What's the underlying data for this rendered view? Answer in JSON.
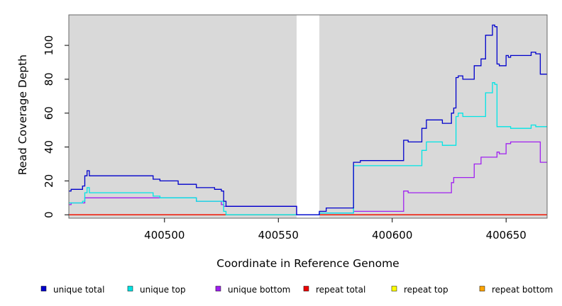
{
  "chart_data": {
    "type": "line",
    "xlabel": "Coordinate in Reference Genome",
    "ylabel": "Read Coverage Depth",
    "xlim": [
      400458,
      400668
    ],
    "ylim": [
      -2,
      118
    ],
    "xticks": [
      400500,
      400550,
      400600,
      400650
    ],
    "yticks": [
      0,
      20,
      40,
      60,
      80,
      100
    ],
    "gap": [
      400558,
      400568
    ],
    "colors": {
      "panel": "#d9d9d9",
      "gap": "#ffffff"
    },
    "legend_position": "bottom",
    "series": [
      {
        "name": "unique total",
        "color": "#0000cc",
        "points": [
          [
            400458,
            14
          ],
          [
            400459,
            15
          ],
          [
            400464,
            17
          ],
          [
            400465,
            23
          ],
          [
            400466,
            26
          ],
          [
            400467,
            23
          ],
          [
            400495,
            21
          ],
          [
            400498,
            20
          ],
          [
            400506,
            18
          ],
          [
            400514,
            16
          ],
          [
            400522,
            15
          ],
          [
            400525,
            14
          ],
          [
            400526,
            8
          ],
          [
            400527,
            5
          ],
          [
            400558,
            0
          ],
          [
            400568,
            2
          ],
          [
            400571,
            4
          ],
          [
            400583,
            31
          ],
          [
            400586,
            32
          ],
          [
            400605,
            44
          ],
          [
            400607,
            43
          ],
          [
            400613,
            51
          ],
          [
            400615,
            56
          ],
          [
            400622,
            54
          ],
          [
            400626,
            60
          ],
          [
            400627,
            63
          ],
          [
            400628,
            81
          ],
          [
            400629,
            82
          ],
          [
            400631,
            80
          ],
          [
            400636,
            88
          ],
          [
            400639,
            92
          ],
          [
            400641,
            106
          ],
          [
            400644,
            112
          ],
          [
            400645,
            111
          ],
          [
            400646,
            89
          ],
          [
            400647,
            88
          ],
          [
            400650,
            94
          ],
          [
            400651,
            93
          ],
          [
            400652,
            94
          ],
          [
            400661,
            96
          ],
          [
            400663,
            95
          ],
          [
            400665,
            83
          ],
          [
            400668,
            83
          ]
        ]
      },
      {
        "name": "unique top",
        "color": "#00e5e5",
        "points": [
          [
            400458,
            7
          ],
          [
            400464,
            8
          ],
          [
            400465,
            13
          ],
          [
            400466,
            16
          ],
          [
            400467,
            13
          ],
          [
            400495,
            11
          ],
          [
            400498,
            10
          ],
          [
            400506,
            10
          ],
          [
            400514,
            8
          ],
          [
            400522,
            8
          ],
          [
            400525,
            8
          ],
          [
            400526,
            2
          ],
          [
            400527,
            0
          ],
          [
            400568,
            1
          ],
          [
            400571,
            1
          ],
          [
            400583,
            29
          ],
          [
            400586,
            29
          ],
          [
            400605,
            29
          ],
          [
            400613,
            38
          ],
          [
            400615,
            43
          ],
          [
            400622,
            41
          ],
          [
            400628,
            58
          ],
          [
            400629,
            60
          ],
          [
            400631,
            58
          ],
          [
            400641,
            72
          ],
          [
            400644,
            78
          ],
          [
            400645,
            77
          ],
          [
            400646,
            52
          ],
          [
            400652,
            51
          ],
          [
            400661,
            53
          ],
          [
            400663,
            52
          ],
          [
            400668,
            52
          ]
        ]
      },
      {
        "name": "unique bottom",
        "color": "#a020f0",
        "points": [
          [
            400458,
            6
          ],
          [
            400459,
            7
          ],
          [
            400465,
            10
          ],
          [
            400495,
            10
          ],
          [
            400506,
            10
          ],
          [
            400514,
            8
          ],
          [
            400525,
            6
          ],
          [
            400526,
            5
          ],
          [
            400527,
            5
          ],
          [
            400558,
            0
          ],
          [
            400568,
            1
          ],
          [
            400583,
            2
          ],
          [
            400586,
            2
          ],
          [
            400605,
            14
          ],
          [
            400607,
            13
          ],
          [
            400626,
            19
          ],
          [
            400627,
            22
          ],
          [
            400636,
            30
          ],
          [
            400639,
            34
          ],
          [
            400646,
            37
          ],
          [
            400647,
            36
          ],
          [
            400650,
            42
          ],
          [
            400652,
            43
          ],
          [
            400665,
            31
          ],
          [
            400668,
            31
          ]
        ]
      },
      {
        "name": "repeat total",
        "color": "#ee0000",
        "points": [
          [
            400458,
            0
          ],
          [
            400668,
            0
          ]
        ]
      },
      {
        "name": "repeat top",
        "color": "#ffff00",
        "points": [
          [
            400458,
            0
          ],
          [
            400668,
            0
          ]
        ]
      },
      {
        "name": "repeat bottom",
        "color": "#ffa500",
        "points": [
          [
            400458,
            0
          ],
          [
            400668,
            0
          ]
        ]
      }
    ]
  }
}
